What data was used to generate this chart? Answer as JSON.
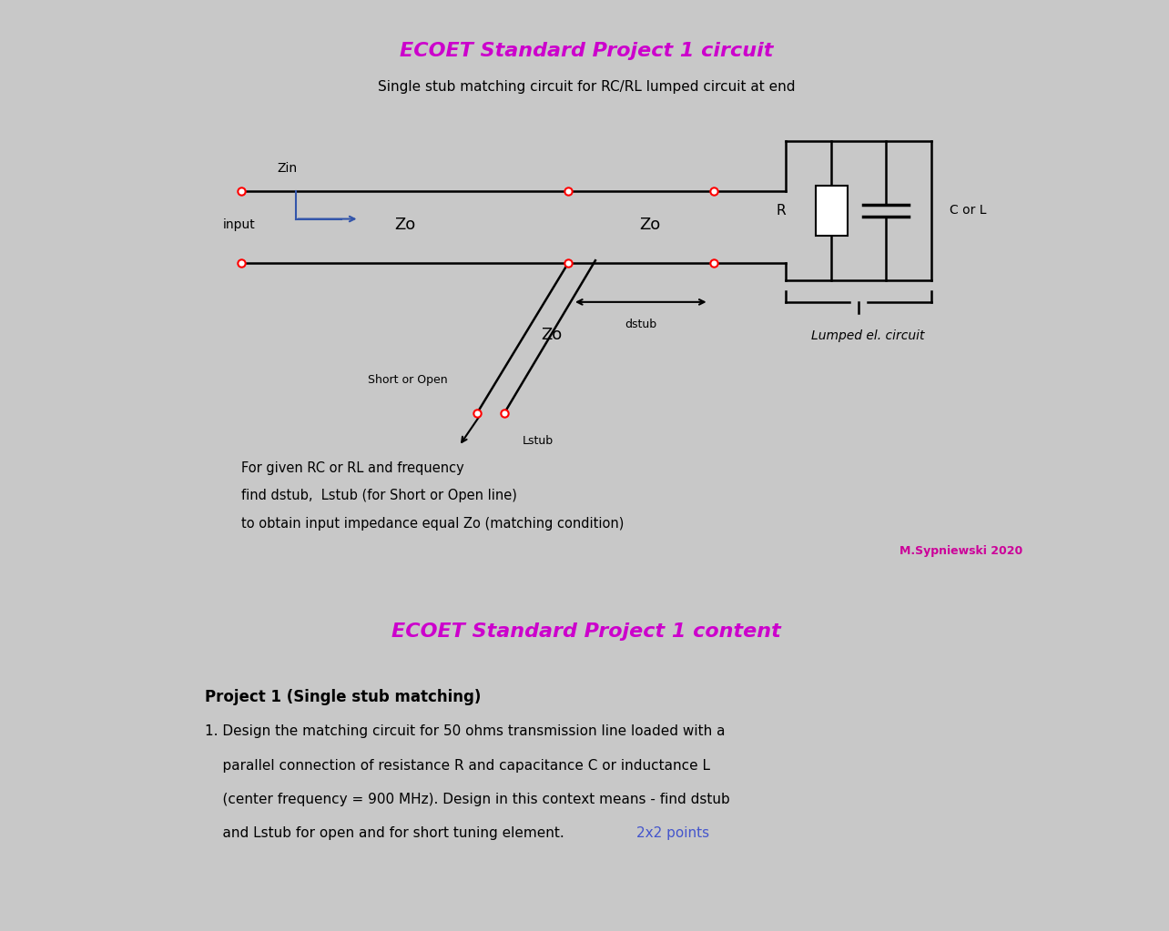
{
  "bg_color": "#c8c8c8",
  "panel1_bg": "#ffffff",
  "panel2_bg": "#ffffff",
  "title1": "ECOET Standard Project 1 circuit",
  "title1_color": "#cc00cc",
  "subtitle1": "Single stub matching circuit for RC/RL lumped circuit at end",
  "body_text1_line1": "For given RC or RL and frequency",
  "body_text1_line2": "find dstub,  Lstub (for Short or Open line)",
  "body_text1_line3": "to obtain input impedance equal Zo (matching condition)",
  "watermark": "M.Sypniewski 2020",
  "watermark_color": "#cc0099",
  "title2": "ECOET Standard Project 1 content",
  "title2_color": "#cc00cc",
  "proj_heading": "Project 1 (Single stub matching)",
  "proj_line1": "1. Design the matching circuit for 50 ohms transmission line loaded with a",
  "proj_line2": "    parallel connection of resistance R and capacitance C or inductance L",
  "proj_line3": "    (center frequency = 900 MHz). Design in this context means - find dstub",
  "proj_line4": "    and Lstub for open and for short tuning element. ",
  "proj_text_blue": "2x2 points",
  "proj_text_blue_color": "#4455cc"
}
